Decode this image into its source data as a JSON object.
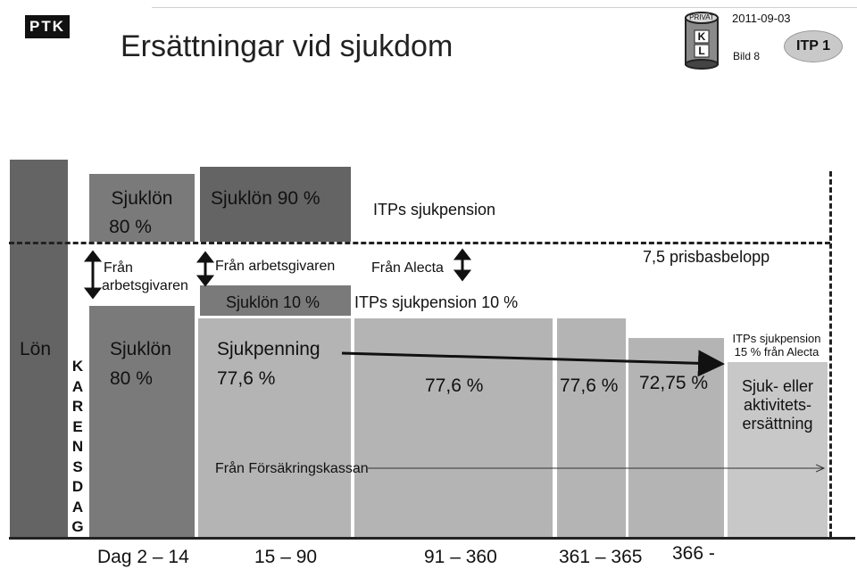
{
  "header": {
    "logo": "PTK",
    "title": "Ersättningar vid sjukdom",
    "date": "2011-09-03",
    "slide": "Bild 8",
    "badge": "ITP 1",
    "seal": {
      "top": "PRIVAT",
      "letters": [
        "K",
        "L"
      ]
    }
  },
  "upper": {
    "sjuklon80_title": "Sjuklön",
    "sjuklon80_pct": "80 %",
    "sjuklon90": "Sjuklön 90 %",
    "itps": "ITPs sjukpension",
    "fran_arb_left": [
      "Från",
      "arbetsgivaren"
    ],
    "fran_arb_mid": "Från arbetsgivaren",
    "fran_alecta": "Från Alecta",
    "prisbas": "7,5 prisbasbelopp",
    "sjuklon10": "Sjuklön 10 %",
    "itps10": "ITPs sjukpension 10 %"
  },
  "lower": {
    "lon": "Lön",
    "karensdag": [
      "K",
      "A",
      "R",
      "E",
      "N",
      "S",
      "D",
      "A",
      "G"
    ],
    "sjuklon": "Sjuklön",
    "sjuklon_pct": "80 %",
    "sjukpenning": "Sjukpenning",
    "sjukpenning_pct": "77,6 %",
    "pct_91_360": "77,6 %",
    "pct_361_365": "77,6 %",
    "pct_366": "72,75 %",
    "itps15": [
      "ITPs sjukpension",
      "15 % från Alecta"
    ],
    "aktivitet": [
      "Sjuk- eller",
      "aktivitets-",
      "ersättning"
    ],
    "forsakringskassan": "Från Försäkringskassan"
  },
  "axis": {
    "periods": [
      "Dag  2 – 14",
      "15 – 90",
      "91 – 360",
      "361 – 365",
      "366 -"
    ]
  },
  "colors": {
    "dark": "#646464",
    "mid": "#7a7a7a",
    "light": "#b4b4b4",
    "lighter": "#c8c8c8"
  }
}
